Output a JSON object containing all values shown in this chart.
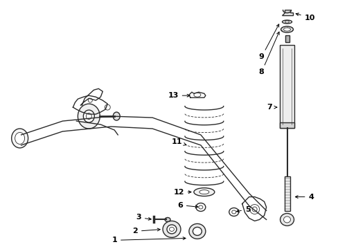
{
  "bg_color": "#ffffff",
  "line_color": "#2a2a2a",
  "label_color": "#000000",
  "fig_width": 4.89,
  "fig_height": 3.6,
  "dpi": 100,
  "arrow_color": "#000000"
}
